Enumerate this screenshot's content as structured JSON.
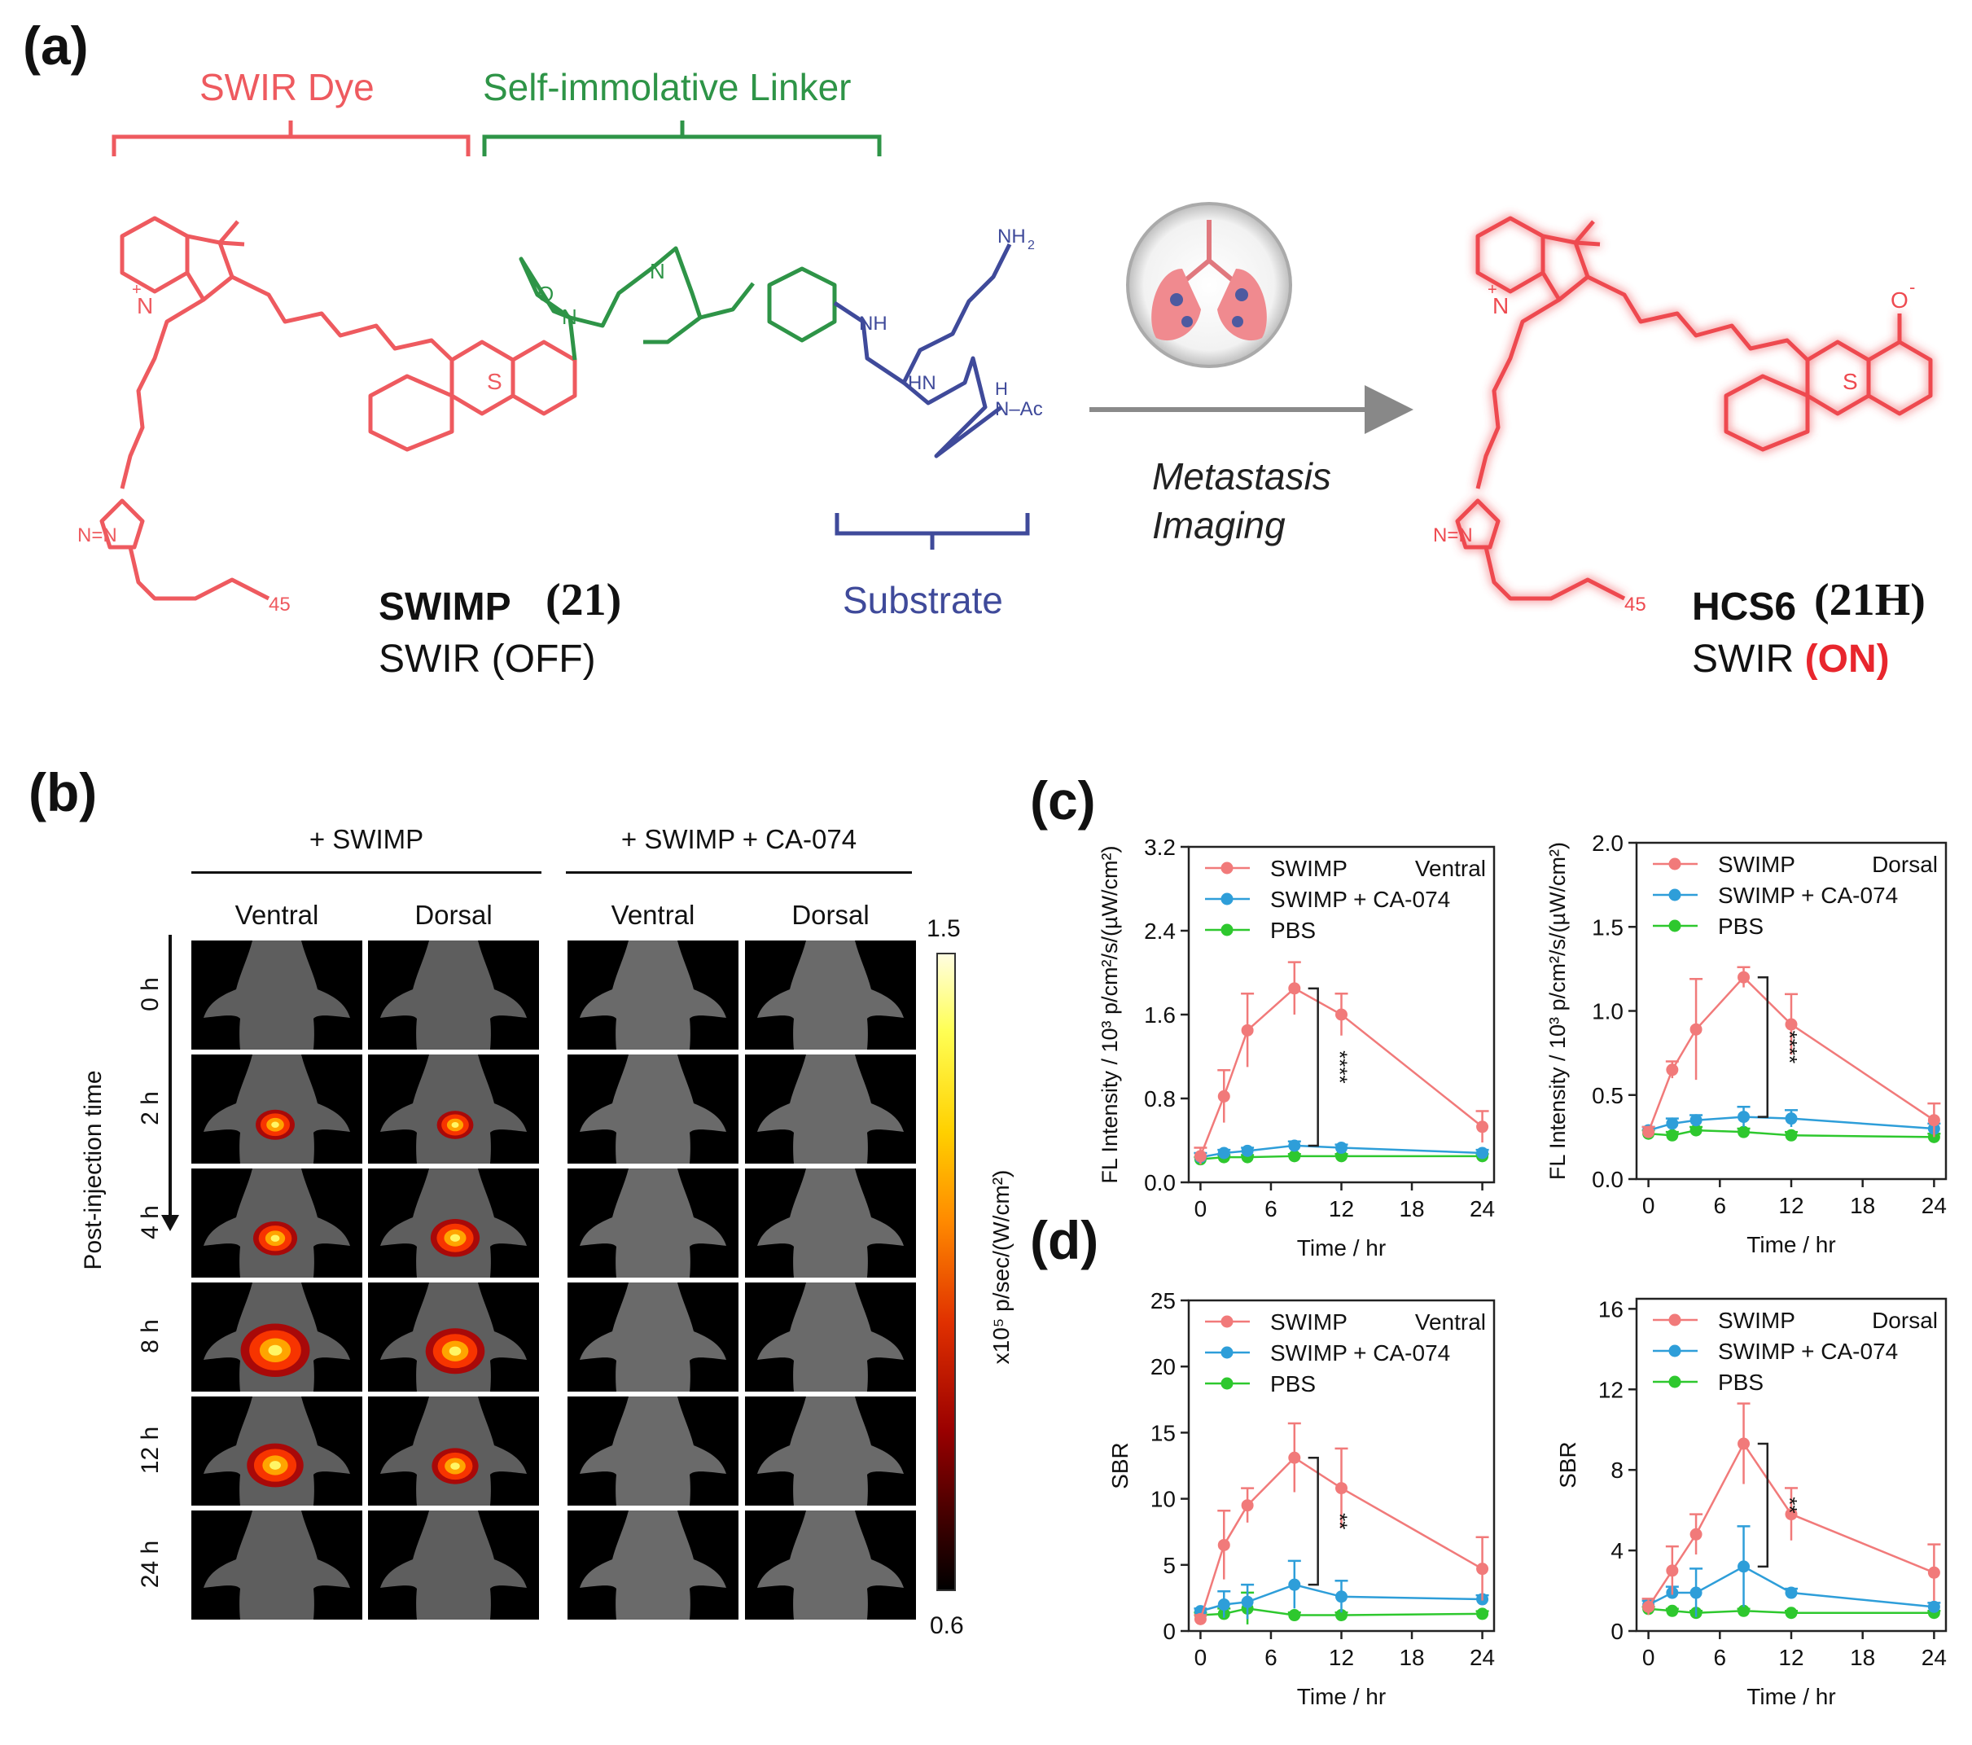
{
  "panel_labels": {
    "a": "(a)",
    "b": "(b)",
    "c": "(c)",
    "d": "(d)"
  },
  "scheme": {
    "swir_dye": "SWIR Dye",
    "linker": "Self-immolative Linker",
    "substrate": "Substrate",
    "probe_name": "SWIMP",
    "probe_number": "(21)",
    "probe_state": "SWIR (OFF)",
    "product_name": "HCS6",
    "product_number": "(21H)",
    "product_state_prefix": "SWIR ",
    "product_state": "(ON)",
    "arrow_line1": "Metastasis",
    "arrow_line2": "Imaging",
    "atoms": {
      "n_plus": "N",
      "plus": "+",
      "s": "S",
      "o": "O",
      "n": "N",
      "nh2": "NH",
      "nh2_sub": "2",
      "nh": "NH",
      "hn": "HN",
      "h": "H",
      "nac": "N–Ac",
      "o_minus": "O",
      "minus": "-",
      "peg_n": "45",
      "triazole": "N=N"
    },
    "colors": {
      "dye": "#ee5a5f",
      "linker": "#2e9447",
      "substrate": "#3f4a9a",
      "on": "#e8262d"
    }
  },
  "imaging": {
    "group1": "+ SWIMP",
    "group2": "+ SWIMP + CA-074",
    "views": [
      "Ventral",
      "Dorsal",
      "Ventral",
      "Dorsal"
    ],
    "times": [
      "0 h",
      "2 h",
      "4 h",
      "8 h",
      "12 h",
      "24 h"
    ],
    "axis_label": "Post-injection time",
    "signal": [
      [
        0,
        0,
        0,
        0
      ],
      [
        0.35,
        0.3,
        0,
        0
      ],
      [
        0.45,
        0.55,
        0,
        0
      ],
      [
        0.95,
        0.75,
        0,
        0
      ],
      [
        0.7,
        0.5,
        0,
        0
      ],
      [
        0,
        0,
        0,
        0
      ]
    ],
    "colorbar": {
      "max": "1.5",
      "min": "0.6",
      "label": "x10⁵ p/sec/(W/cm²)"
    }
  },
  "chart_data": [
    {
      "panel": "c",
      "view": "Ventral",
      "type": "line",
      "ylabel": "FL Intensity / 10³ p/cm²/s/(µW/cm²)",
      "xlabel": "Time / hr",
      "xticks": [
        0,
        6,
        12,
        18,
        24
      ],
      "xlim": [
        -1,
        25
      ],
      "yticks": [
        0.0,
        0.8,
        1.6,
        2.4,
        3.2
      ],
      "ytick_labels": [
        "0.0",
        "0.8",
        "1.6",
        "2.4",
        "3.2"
      ],
      "ylim": [
        0,
        3.2
      ],
      "x": [
        0,
        2,
        4,
        8,
        12,
        24
      ],
      "series": [
        {
          "name": "SWIMP",
          "color": "#f17a7a",
          "values": [
            0.25,
            0.82,
            1.45,
            1.85,
            1.6,
            0.53
          ],
          "err": [
            0.08,
            0.25,
            0.35,
            0.25,
            0.2,
            0.15
          ]
        },
        {
          "name": "SWIMP + CA-074",
          "color": "#2e9ed9",
          "values": [
            0.24,
            0.28,
            0.3,
            0.35,
            0.33,
            0.28
          ],
          "err": [
            0.04,
            0.03,
            0.03,
            0.04,
            0.03,
            0.03
          ]
        },
        {
          "name": "PBS",
          "color": "#2ec82e",
          "values": [
            0.22,
            0.24,
            0.24,
            0.25,
            0.25,
            0.25
          ],
          "err": [
            0.02,
            0.02,
            0.02,
            0.02,
            0.02,
            0.02
          ]
        }
      ],
      "significance": {
        "x": 10,
        "y1": 1.85,
        "y2": 0.35,
        "label": "****"
      }
    },
    {
      "panel": "c",
      "view": "Dorsal",
      "type": "line",
      "ylabel": "FL Intensity / 10³ p/cm²/s/(µW/cm²)",
      "xlabel": "Time / hr",
      "xticks": [
        0,
        6,
        12,
        18,
        24
      ],
      "xlim": [
        -1,
        25
      ],
      "yticks": [
        0.0,
        0.5,
        1.0,
        1.5,
        2.0
      ],
      "ytick_labels": [
        "0.0",
        "0.5",
        "1.0",
        "1.5",
        "2.0"
      ],
      "ylim": [
        0,
        2.0
      ],
      "x": [
        0,
        2,
        4,
        8,
        12,
        24
      ],
      "series": [
        {
          "name": "SWIMP",
          "color": "#f17a7a",
          "values": [
            0.28,
            0.65,
            0.89,
            1.2,
            0.92,
            0.35
          ],
          "err": [
            0.03,
            0.05,
            0.3,
            0.06,
            0.18,
            0.1
          ]
        },
        {
          "name": "SWIMP + CA-074",
          "color": "#2e9ed9",
          "values": [
            0.29,
            0.33,
            0.35,
            0.37,
            0.36,
            0.3
          ],
          "err": [
            0.02,
            0.03,
            0.03,
            0.06,
            0.05,
            0.03
          ]
        },
        {
          "name": "PBS",
          "color": "#2ec82e",
          "values": [
            0.27,
            0.26,
            0.29,
            0.28,
            0.26,
            0.25
          ],
          "err": [
            0.02,
            0.02,
            0.02,
            0.02,
            0.02,
            0.02
          ]
        }
      ],
      "significance": {
        "x": 10,
        "y1": 1.2,
        "y2": 0.37,
        "label": "****"
      }
    },
    {
      "panel": "d",
      "view": "Ventral",
      "type": "line",
      "ylabel": "SBR",
      "xlabel": "Time / hr",
      "xticks": [
        0,
        6,
        12,
        18,
        24
      ],
      "xlim": [
        -1,
        25
      ],
      "yticks": [
        0,
        5,
        10,
        15,
        20,
        25
      ],
      "ytick_labels": [
        "0",
        "5",
        "10",
        "15",
        "20",
        "25"
      ],
      "ylim": [
        0,
        25
      ],
      "x": [
        0,
        2,
        4,
        8,
        12,
        24
      ],
      "series": [
        {
          "name": "SWIMP",
          "color": "#f17a7a",
          "values": [
            0.9,
            6.5,
            9.5,
            13.1,
            10.8,
            4.7
          ],
          "err": [
            0.3,
            2.6,
            1.3,
            2.6,
            3.0,
            2.4
          ]
        },
        {
          "name": "SWIMP + CA-074",
          "color": "#2e9ed9",
          "values": [
            1.5,
            2.0,
            2.2,
            3.5,
            2.6,
            2.4
          ],
          "err": [
            0.2,
            1.0,
            1.3,
            1.8,
            1.2,
            0.3
          ]
        },
        {
          "name": "PBS",
          "color": "#2ec82e",
          "values": [
            1.2,
            1.3,
            1.7,
            1.2,
            1.2,
            1.3
          ],
          "err": [
            0.2,
            0.4,
            1.2,
            0.2,
            0.2,
            0.2
          ]
        }
      ],
      "significance": {
        "x": 10,
        "y1": 13.1,
        "y2": 3.5,
        "label": "**"
      }
    },
    {
      "panel": "d",
      "view": "Dorsal",
      "type": "line",
      "ylabel": "SBR",
      "xlabel": "Time / hr",
      "xticks": [
        0,
        6,
        12,
        18,
        24
      ],
      "xlim": [
        -1,
        25
      ],
      "yticks": [
        0,
        4,
        8,
        12,
        16
      ],
      "ytick_labels": [
        "0",
        "4",
        "8",
        "12",
        "16"
      ],
      "ylim": [
        0,
        16.5
      ],
      "x": [
        0,
        2,
        4,
        8,
        12,
        24
      ],
      "series": [
        {
          "name": "SWIMP",
          "color": "#f17a7a",
          "values": [
            1.2,
            3.0,
            4.8,
            9.3,
            5.8,
            2.9
          ],
          "err": [
            0.4,
            1.2,
            1.0,
            2.0,
            1.3,
            1.4
          ]
        },
        {
          "name": "SWIMP + CA-074",
          "color": "#2e9ed9",
          "values": [
            1.3,
            1.9,
            1.9,
            3.2,
            1.9,
            1.2
          ],
          "err": [
            0.2,
            0.3,
            1.2,
            2.0,
            0.2,
            0.2
          ]
        },
        {
          "name": "PBS",
          "color": "#2ec82e",
          "values": [
            1.1,
            1.0,
            0.9,
            1.0,
            0.9,
            0.9
          ],
          "err": [
            0.1,
            0.1,
            0.1,
            0.1,
            0.1,
            0.1
          ]
        }
      ],
      "significance": {
        "x": 10,
        "y1": 9.3,
        "y2": 3.2,
        "label": "**"
      }
    }
  ]
}
